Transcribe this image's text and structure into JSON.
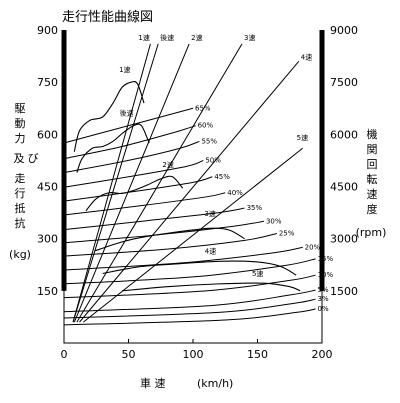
{
  "chart_data": {
    "type": "line",
    "title": "走行性能曲線図",
    "xlabel": "車 速",
    "xunit": "(km/h)",
    "ylabel_left": [
      "駆",
      "動",
      "力",
      "及",
      "び",
      "走",
      "行",
      "抵",
      "抗"
    ],
    "ylabel_left_unit": "(kg)",
    "ylabel_right": [
      "機",
      "関",
      "回",
      "転",
      "速",
      "度"
    ],
    "ylabel_right_unit": "(rpm)",
    "xlim": [
      0,
      200
    ],
    "ylim_left": [
      0,
      900
    ],
    "ylim_right": [
      0,
      9000
    ],
    "x_ticks": [
      "0",
      "50",
      "100",
      "150",
      "200"
    ],
    "y_ticks_left": [
      "150",
      "300",
      "450",
      "600",
      "750",
      "900"
    ],
    "y_ticks_right": [
      "1500",
      "3000",
      "4500",
      "6000",
      "7500",
      "9000"
    ],
    "grid": false,
    "rpm_lines": [
      {
        "name": "1速",
        "points": [
          [
            7,
            60
          ],
          [
            67,
            860
          ]
        ]
      },
      {
        "name": "後速",
        "points": [
          [
            7,
            60
          ],
          [
            73,
            860
          ]
        ]
      },
      {
        "name": "2速",
        "points": [
          [
            8,
            60
          ],
          [
            97,
            860
          ]
        ]
      },
      {
        "name": "3速",
        "points": [
          [
            10,
            60
          ],
          [
            138,
            860
          ]
        ]
      },
      {
        "name": "4速",
        "points": [
          [
            12,
            60
          ],
          [
            182,
            810
          ]
        ]
      },
      {
        "name": "5速",
        "points": [
          [
            15,
            60
          ],
          [
            185,
            560
          ]
        ]
      }
    ],
    "driving_force": [
      {
        "name": "1速",
        "points": [
          [
            8,
            550
          ],
          [
            12,
            610
          ],
          [
            20,
            640
          ],
          [
            30,
            650
          ],
          [
            38,
            690
          ],
          [
            45,
            735
          ],
          [
            52,
            750
          ],
          [
            57,
            745
          ],
          [
            62,
            690
          ]
        ]
      },
      {
        "name": "後速",
        "points": [
          [
            10,
            490
          ],
          [
            14,
            530
          ],
          [
            22,
            560
          ],
          [
            30,
            565
          ],
          [
            38,
            580
          ],
          [
            46,
            605
          ],
          [
            54,
            625
          ],
          [
            60,
            625
          ],
          [
            66,
            575
          ]
        ]
      },
      {
        "name": "2速",
        "points": [
          [
            17,
            380
          ],
          [
            25,
            415
          ],
          [
            35,
            432
          ],
          [
            45,
            430
          ],
          [
            55,
            440
          ],
          [
            65,
            455
          ],
          [
            75,
            472
          ],
          [
            84,
            478
          ],
          [
            92,
            445
          ]
        ]
      },
      {
        "name": "3速",
        "points": [
          [
            24,
            265
          ],
          [
            40,
            285
          ],
          [
            55,
            300
          ],
          [
            70,
            310
          ],
          [
            85,
            318
          ],
          [
            100,
            325
          ],
          [
            115,
            330
          ],
          [
            128,
            325
          ],
          [
            140,
            300
          ]
        ]
      },
      {
        "name": "4速",
        "points": [
          [
            30,
            200
          ],
          [
            60,
            220
          ],
          [
            90,
            228
          ],
          [
            120,
            235
          ],
          [
            150,
            233
          ],
          [
            168,
            220
          ],
          [
            180,
            195
          ]
        ]
      },
      {
        "name": "5速",
        "points": [
          [
            45,
            150
          ],
          [
            80,
            162
          ],
          [
            120,
            170
          ],
          [
            155,
            172
          ],
          [
            175,
            162
          ],
          [
            183,
            150
          ]
        ]
      }
    ],
    "resistance": [
      {
        "name": "65%",
        "points": [
          [
            0,
            575
          ],
          [
            40,
            615
          ],
          [
            80,
            655
          ],
          [
            100,
            675
          ]
        ]
      },
      {
        "name": "60%",
        "points": [
          [
            0,
            530
          ],
          [
            45,
            565
          ],
          [
            85,
            605
          ],
          [
            102,
            625
          ]
        ]
      },
      {
        "name": "55%",
        "points": [
          [
            0,
            490
          ],
          [
            50,
            525
          ],
          [
            90,
            560
          ],
          [
            105,
            580
          ]
        ]
      },
      {
        "name": "50%",
        "points": [
          [
            0,
            448
          ],
          [
            50,
            478
          ],
          [
            95,
            508
          ],
          [
            108,
            525
          ]
        ]
      },
      {
        "name": "45%",
        "points": [
          [
            0,
            408
          ],
          [
            55,
            436
          ],
          [
            100,
            462
          ],
          [
            115,
            478
          ]
        ]
      },
      {
        "name": "40%",
        "points": [
          [
            0,
            368
          ],
          [
            60,
            395
          ],
          [
            110,
            420
          ],
          [
            125,
            432
          ]
        ]
      },
      {
        "name": "35%",
        "points": [
          [
            0,
            326
          ],
          [
            65,
            352
          ],
          [
            120,
            375
          ],
          [
            140,
            388
          ]
        ]
      },
      {
        "name": "30%",
        "points": [
          [
            0,
            288
          ],
          [
            70,
            310
          ],
          [
            130,
            335
          ],
          [
            155,
            350
          ]
        ]
      },
      {
        "name": "25%",
        "points": [
          [
            0,
            250
          ],
          [
            80,
            270
          ],
          [
            140,
            295
          ],
          [
            165,
            315
          ]
        ]
      },
      {
        "name": "20%",
        "points": [
          [
            0,
            210
          ],
          [
            90,
            230
          ],
          [
            160,
            258
          ],
          [
            185,
            275
          ]
        ]
      },
      {
        "name": "15%",
        "points": [
          [
            0,
            170
          ],
          [
            100,
            190
          ],
          [
            170,
            222
          ],
          [
            195,
            242
          ]
        ]
      },
      {
        "name": "10%",
        "points": [
          [
            0,
            130
          ],
          [
            110,
            150
          ],
          [
            175,
            180
          ],
          [
            195,
            195
          ]
        ]
      },
      {
        "name": "5%",
        "points": [
          [
            0,
            90
          ],
          [
            115,
            108
          ],
          [
            175,
            138
          ],
          [
            195,
            152
          ]
        ]
      },
      {
        "name": "3%",
        "points": [
          [
            0,
            72
          ],
          [
            120,
            88
          ],
          [
            178,
            114
          ],
          [
            195,
            126
          ]
        ]
      },
      {
        "name": "0%",
        "points": [
          [
            0,
            52
          ],
          [
            125,
            66
          ],
          [
            180,
            88
          ],
          [
            195,
            98
          ]
        ]
      }
    ]
  }
}
